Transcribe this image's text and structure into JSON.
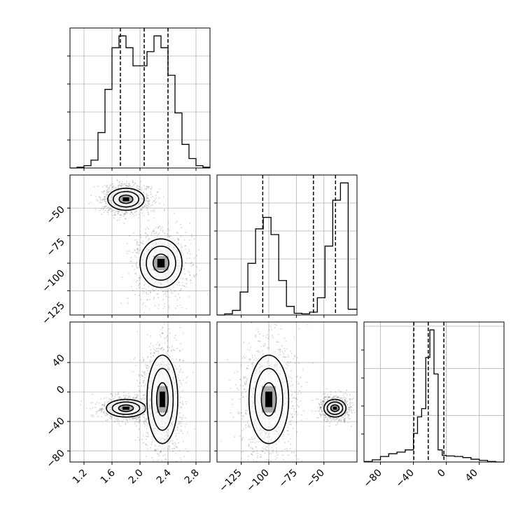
{
  "chart_data": {
    "type": "corner",
    "grid": true,
    "histograms": [
      {
        "panel": "p1",
        "x_range": [
          1.0,
          3.0
        ],
        "bins": [
          1.0,
          1.1,
          1.2,
          1.3,
          1.4,
          1.5,
          1.6,
          1.7,
          1.8,
          1.9,
          2.0,
          2.1,
          2.2,
          2.3,
          2.4,
          2.5,
          2.6,
          2.7,
          2.8,
          2.9,
          3.0
        ],
        "counts": [
          0,
          1,
          3,
          10,
          45,
          100,
          153,
          168,
          153,
          130,
          130,
          148,
          168,
          153,
          118,
          70,
          30,
          12,
          3,
          1
        ],
        "quantiles": [
          1.72,
          2.06,
          2.4
        ]
      },
      {
        "panel": "p2",
        "x_range": [
          -147,
          -20
        ],
        "bins": [
          -147,
          -140,
          -133,
          -126,
          -119,
          -112,
          -105,
          -98,
          -91,
          -84,
          -77,
          -70,
          -63,
          -56,
          -49,
          -42,
          -35,
          -28,
          -20
        ],
        "counts": [
          0,
          2,
          8,
          40,
          90,
          150,
          170,
          140,
          60,
          15,
          3,
          2,
          5,
          30,
          120,
          200,
          230,
          10
        ],
        "quantiles": [
          -105.5,
          -59.5,
          -39.5
        ]
      },
      {
        "panel": "p3",
        "x_range": [
          -100,
          70
        ],
        "bins": [
          -100,
          -90,
          -80,
          -70,
          -60,
          -50,
          -40,
          -35,
          -30,
          -25,
          -20,
          -15,
          -10,
          -5,
          0,
          10,
          20,
          30,
          40,
          50,
          60,
          70
        ],
        "counts": [
          1,
          4,
          10,
          15,
          18,
          22,
          52,
          82,
          97,
          190,
          240,
          160,
          22,
          12,
          11,
          10,
          8,
          5,
          3,
          1,
          0
        ],
        "quantiles": [
          -39.5,
          -22,
          -3
        ]
      }
    ],
    "scatter_panels": [
      {
        "panel": "s21",
        "x_range": [
          1.0,
          3.0
        ],
        "y_range": [
          -147,
          -20
        ],
        "modes": [
          {
            "center": [
              1.8,
              -42
            ],
            "spread": [
              0.13,
              5
            ],
            "weight": 0.5
          },
          {
            "center": [
              2.3,
              -100
            ],
            "spread": [
              0.15,
              11
            ],
            "weight": 0.5
          }
        ]
      },
      {
        "panel": "s31",
        "x_range": [
          1.0,
          3.0
        ],
        "y_range": [
          -95,
          95
        ],
        "modes": [
          {
            "center": [
              1.8,
              -22
            ],
            "spread": [
              0.14,
              6
            ],
            "weight": 0.4
          },
          {
            "center": [
              2.32,
              -10
            ],
            "spread": [
              0.11,
              30
            ],
            "weight": 0.6
          }
        ]
      },
      {
        "panel": "s32",
        "x_range": [
          -147,
          -20
        ],
        "y_range": [
          -95,
          95
        ],
        "modes": [
          {
            "center": [
              -100,
              -10
            ],
            "spread": [
              9,
              30
            ],
            "weight": 0.6
          },
          {
            "center": [
              -40,
              -22
            ],
            "spread": [
              5,
              6
            ],
            "weight": 0.4
          }
        ]
      }
    ],
    "tick_labels": {
      "x_bottom_1": [
        "1.2",
        "1.6",
        "2.0",
        "2.4",
        "2.8"
      ],
      "x_bottom_2": [
        "−125",
        "−100",
        "−75",
        "−50"
      ],
      "x_bottom_3": [
        "−80",
        "−40",
        "0",
        "40"
      ],
      "y_left_2": [
        "−50",
        "−75",
        "−100",
        "−125"
      ],
      "y_left_3": [
        "40",
        "0",
        "−40",
        "−80"
      ]
    }
  }
}
